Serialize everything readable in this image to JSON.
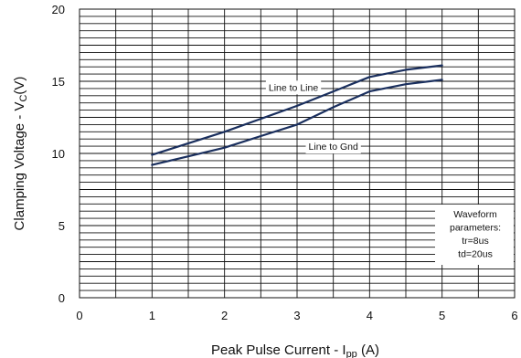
{
  "chart_data": {
    "type": "line",
    "xlabel": {
      "main": "Peak Pulse Current - I",
      "sub": "pp",
      "unit": " (A)"
    },
    "ylabel": {
      "main": "Clamping Voltage - V",
      "sub": "C",
      "unit": "(V)"
    },
    "xlim": [
      0,
      6
    ],
    "ylim": [
      0,
      20
    ],
    "x_ticks": [
      "0",
      "1",
      "2",
      "3",
      "4",
      "5",
      "6"
    ],
    "y_ticks": [
      "0",
      "5",
      "10",
      "15",
      "20"
    ],
    "grid": {
      "horizontal_minor_step": 0.5,
      "vertical_step": 0.5
    },
    "series": [
      {
        "name": "Line to Line",
        "color": "#1a2f5e",
        "x": [
          1,
          1.5,
          2,
          2.5,
          3,
          3.5,
          4,
          4.5,
          5
        ],
        "y": [
          9.9,
          10.7,
          11.5,
          12.4,
          13.3,
          14.3,
          15.3,
          15.8,
          16.1
        ]
      },
      {
        "name": "Line to Gnd",
        "color": "#1a2f5e",
        "x": [
          1,
          1.5,
          2,
          2.5,
          3,
          3.5,
          4,
          4.5,
          5
        ],
        "y": [
          9.2,
          9.8,
          10.4,
          11.2,
          12.0,
          13.2,
          14.3,
          14.8,
          15.1
        ]
      }
    ],
    "annotations": [
      {
        "text": "Line to Line",
        "x": 2.95,
        "y": 14.6
      },
      {
        "text": "Line to Gnd",
        "x": 3.5,
        "y": 10.5
      }
    ],
    "note": {
      "lines": [
        "Waveform",
        "parameters:",
        "tr=8us",
        "td=20us"
      ]
    }
  }
}
